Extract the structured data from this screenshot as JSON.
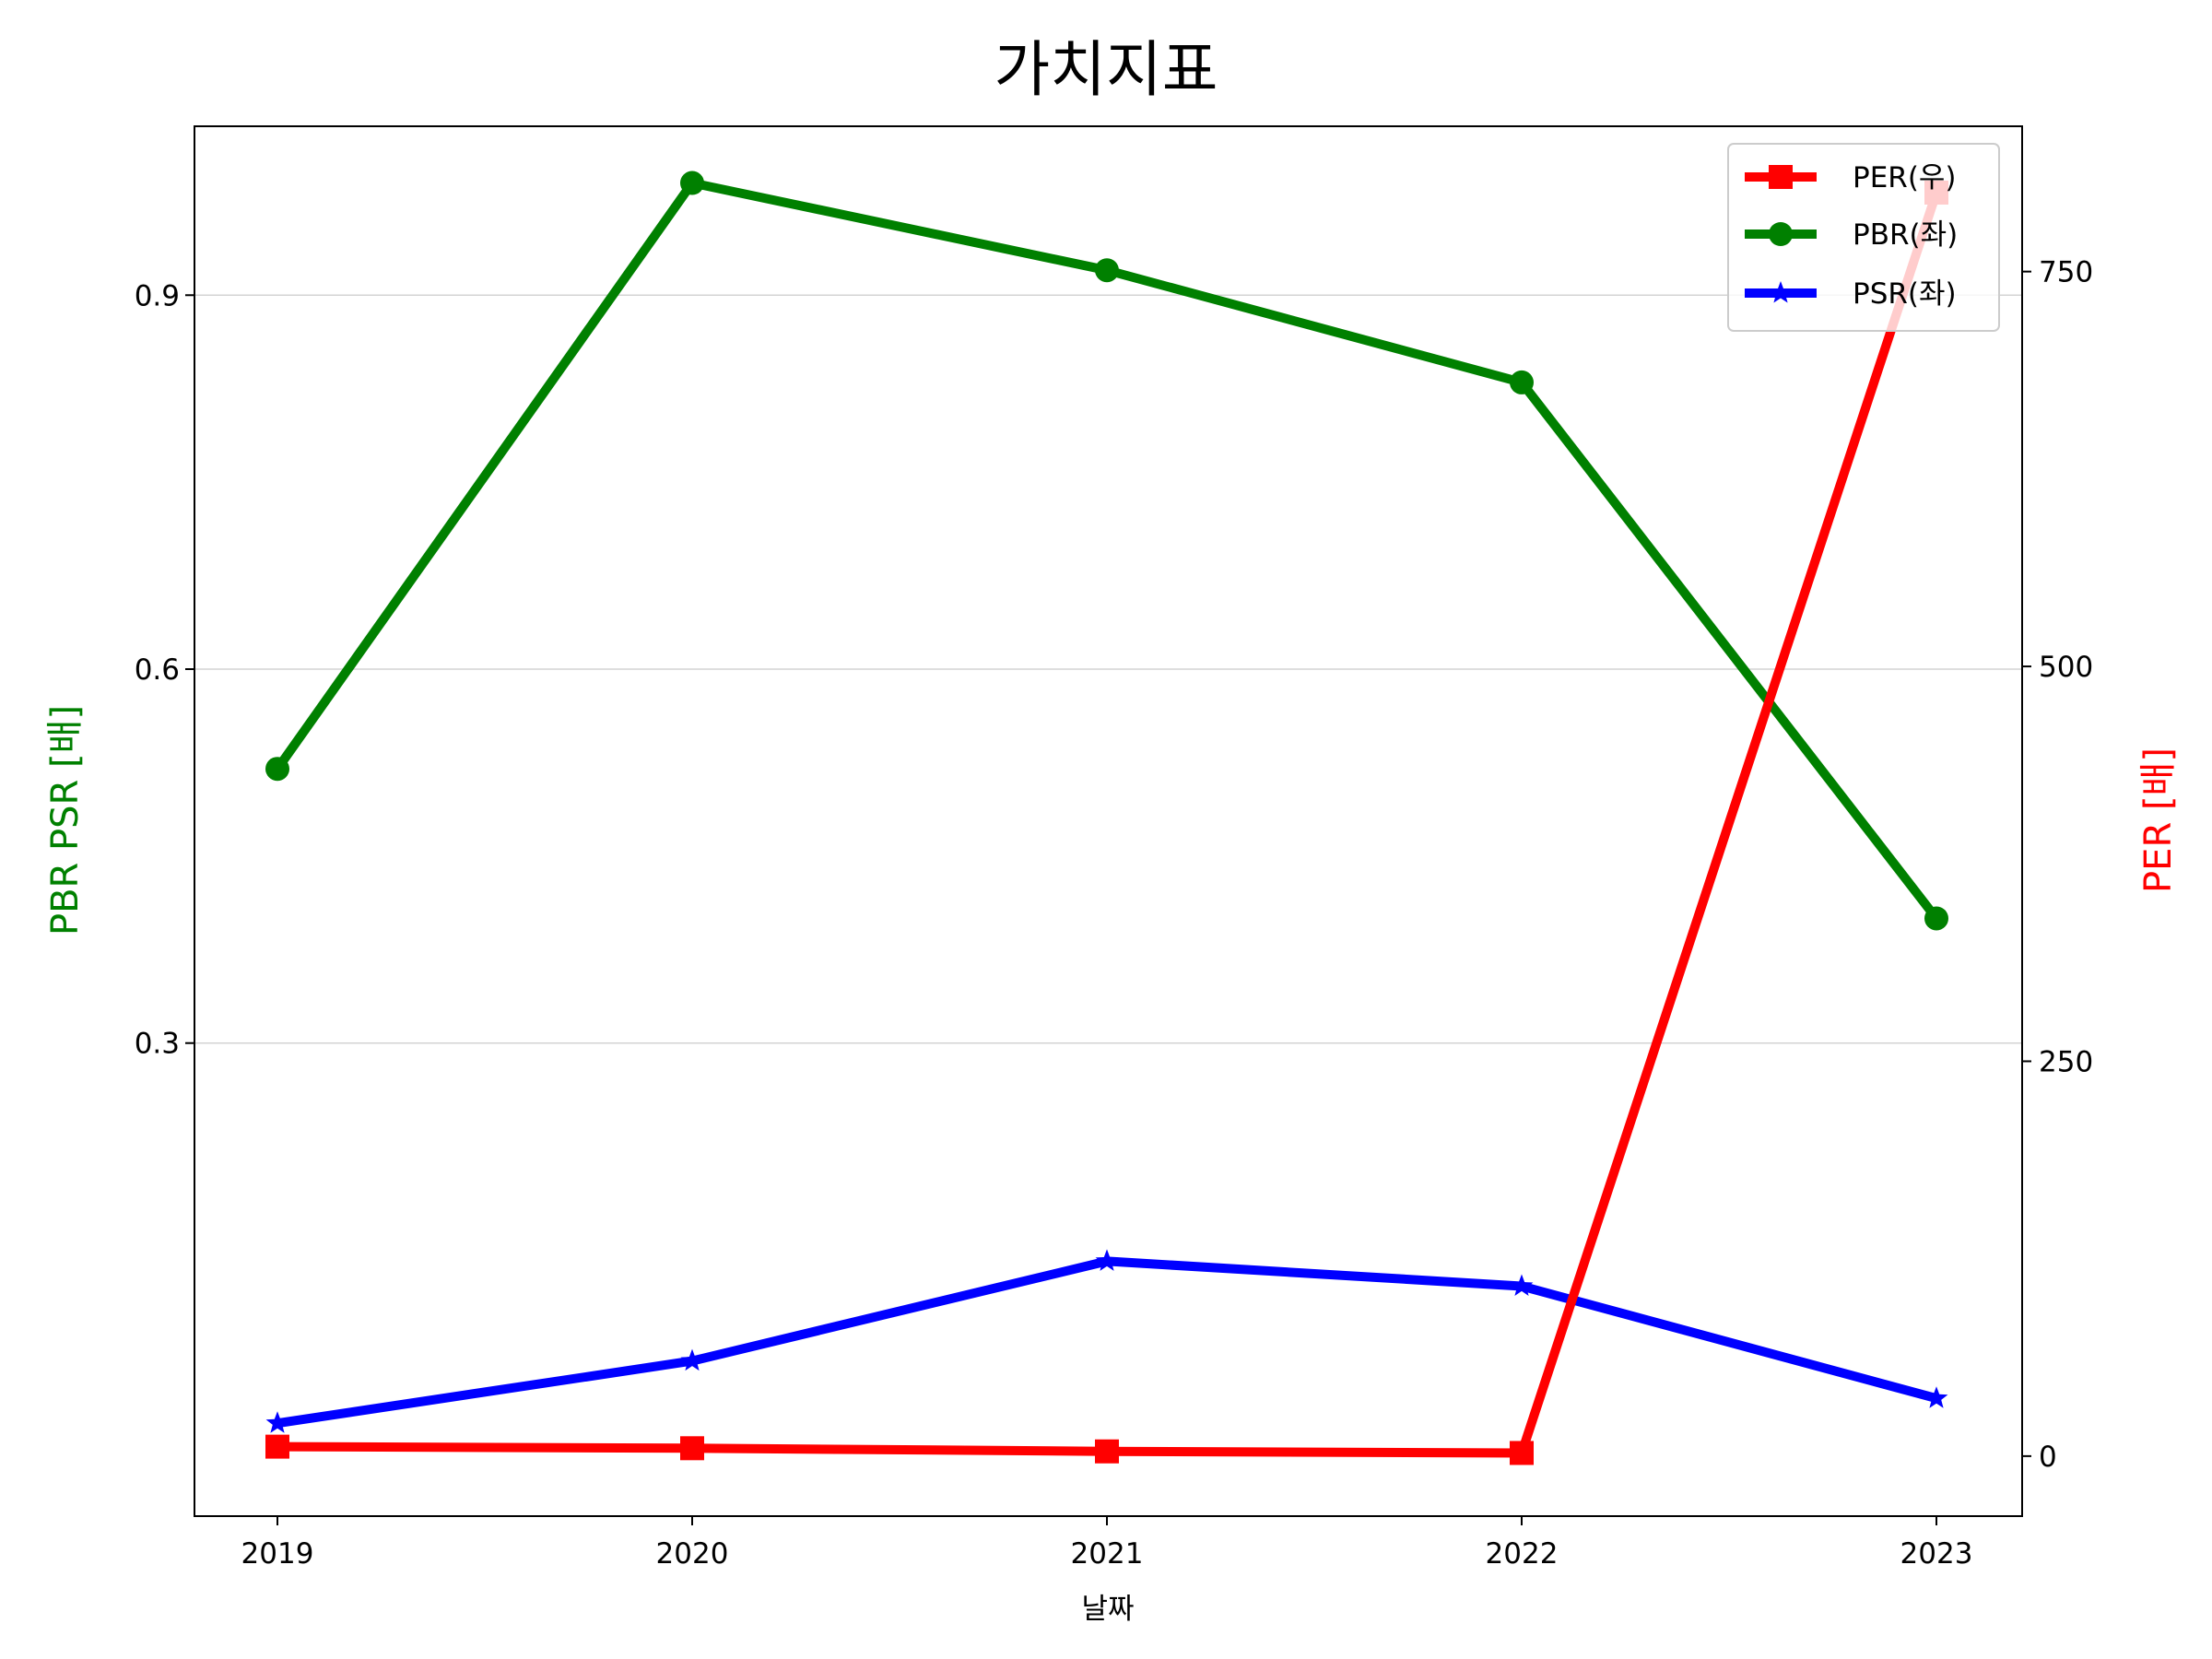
{
  "chart_data": {
    "type": "line",
    "title": "가치지표",
    "xlabel": "날짜",
    "ylabel_left": "PBR PSR [배]",
    "ylabel_right": "PER [배]",
    "categories": [
      "2019",
      "2020",
      "2021",
      "2022",
      "2023"
    ],
    "left_axis": {
      "ylim": [
        -0.0795,
        1.0355
      ],
      "ticks": [
        0.3,
        0.6,
        0.9
      ],
      "tick_labels": [
        "0.3",
        "0.6",
        "0.9"
      ],
      "grid": true
    },
    "right_axis": {
      "ylim": [
        -38,
        842
      ],
      "ticks": [
        0,
        250,
        500,
        750
      ],
      "tick_labels": [
        "0",
        "250",
        "500",
        "750"
      ]
    },
    "series": [
      {
        "name": "PER(우)",
        "axis": "right",
        "color": "#ff0000",
        "marker": "square",
        "values": [
          6,
          5,
          3,
          2,
          800
        ]
      },
      {
        "name": "PBR(좌)",
        "axis": "left",
        "color": "#008000",
        "marker": "circle",
        "values": [
          0.52,
          0.99,
          0.92,
          0.83,
          0.4
        ]
      },
      {
        "name": "PSR(좌)",
        "axis": "left",
        "color": "#0000ff",
        "marker": "star",
        "values": [
          -0.005,
          0.045,
          0.125,
          0.105,
          0.015
        ]
      }
    ],
    "legend_position": "top-right"
  }
}
